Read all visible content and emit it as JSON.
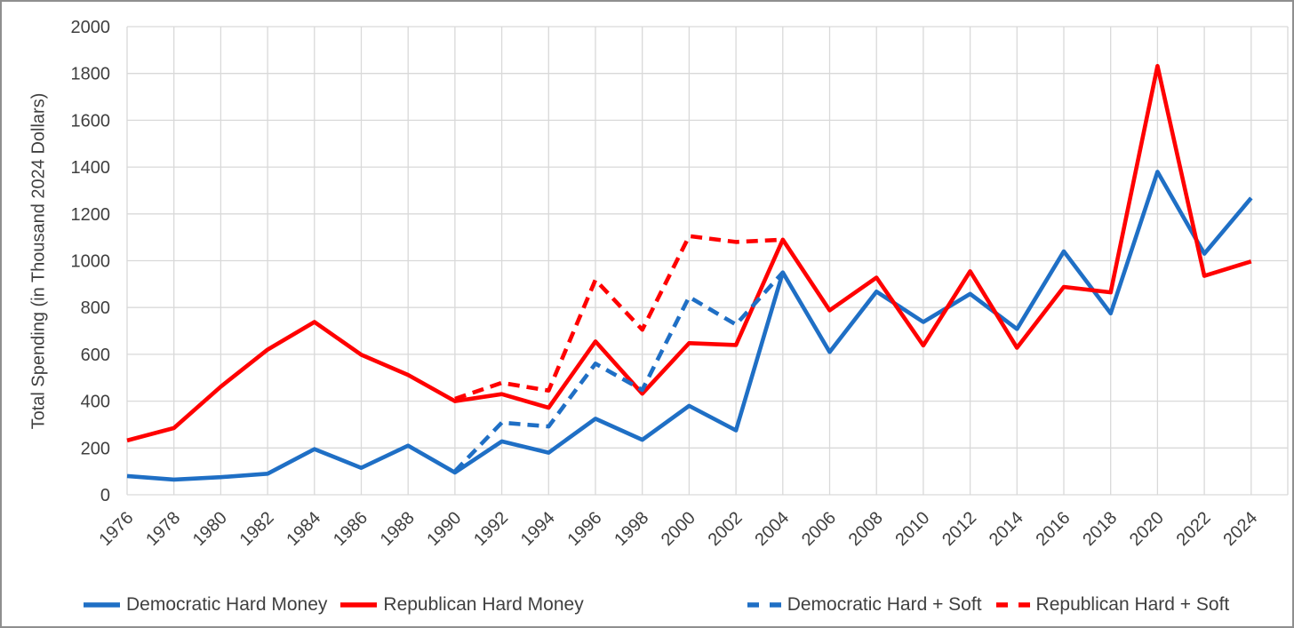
{
  "chart_data": {
    "type": "line",
    "title": "",
    "xlabel": "",
    "ylabel": "Total Spending (in Thousand 2024 Dollars)",
    "ylim": [
      0,
      2000
    ],
    "yticks": [
      0,
      200,
      400,
      600,
      800,
      1000,
      1200,
      1400,
      1600,
      1800,
      2000
    ],
    "grid": true,
    "legend_position": "bottom",
    "categories": [
      1976,
      1978,
      1980,
      1982,
      1984,
      1986,
      1988,
      1990,
      1992,
      1994,
      1996,
      1998,
      2000,
      2002,
      2004,
      2006,
      2008,
      2010,
      2012,
      2014,
      2016,
      2018,
      2020,
      2022,
      2024
    ],
    "series": [
      {
        "name": "Democratic Hard Money",
        "color": "#1f6fc5",
        "dash": false,
        "x": [
          1976,
          1978,
          1980,
          1982,
          1984,
          1986,
          1988,
          1990,
          1992,
          1994,
          1996,
          1998,
          2000,
          2002,
          2004,
          2006,
          2008,
          2010,
          2012,
          2014,
          2016,
          2018,
          2020,
          2022,
          2024
        ],
        "values": [
          80,
          65,
          75,
          90,
          195,
          115,
          210,
          95,
          228,
          180,
          325,
          235,
          380,
          275,
          950,
          610,
          868,
          738,
          858,
          708,
          1040,
          775,
          1380,
          1030,
          1268
        ]
      },
      {
        "name": "Republican Hard Money",
        "color": "#ff0000",
        "dash": false,
        "x": [
          1976,
          1978,
          1980,
          1982,
          1984,
          1986,
          1988,
          1990,
          1992,
          1994,
          1996,
          1998,
          2000,
          2002,
          2004,
          2006,
          2008,
          2010,
          2012,
          2014,
          2016,
          2018,
          2020,
          2022,
          2024
        ],
        "values": [
          232,
          285,
          462,
          620,
          738,
          598,
          512,
          400,
          430,
          372,
          655,
          432,
          648,
          640,
          1090,
          788,
          928,
          638,
          955,
          628,
          888,
          865,
          1832,
          935,
          997
        ]
      },
      {
        "name": "Democratic Hard + Soft",
        "color": "#1f6fc5",
        "dash": true,
        "x": [
          1990,
          1992,
          1994,
          1996,
          1998,
          2000,
          2002,
          2004
        ],
        "values": [
          100,
          308,
          292,
          560,
          448,
          845,
          727,
          950
        ]
      },
      {
        "name": "Republican Hard + Soft",
        "color": "#ff0000",
        "dash": true,
        "x": [
          1990,
          1992,
          1994,
          1996,
          1998,
          2000,
          2002,
          2004
        ],
        "values": [
          410,
          478,
          445,
          918,
          705,
          1105,
          1080,
          1090
        ]
      }
    ]
  }
}
